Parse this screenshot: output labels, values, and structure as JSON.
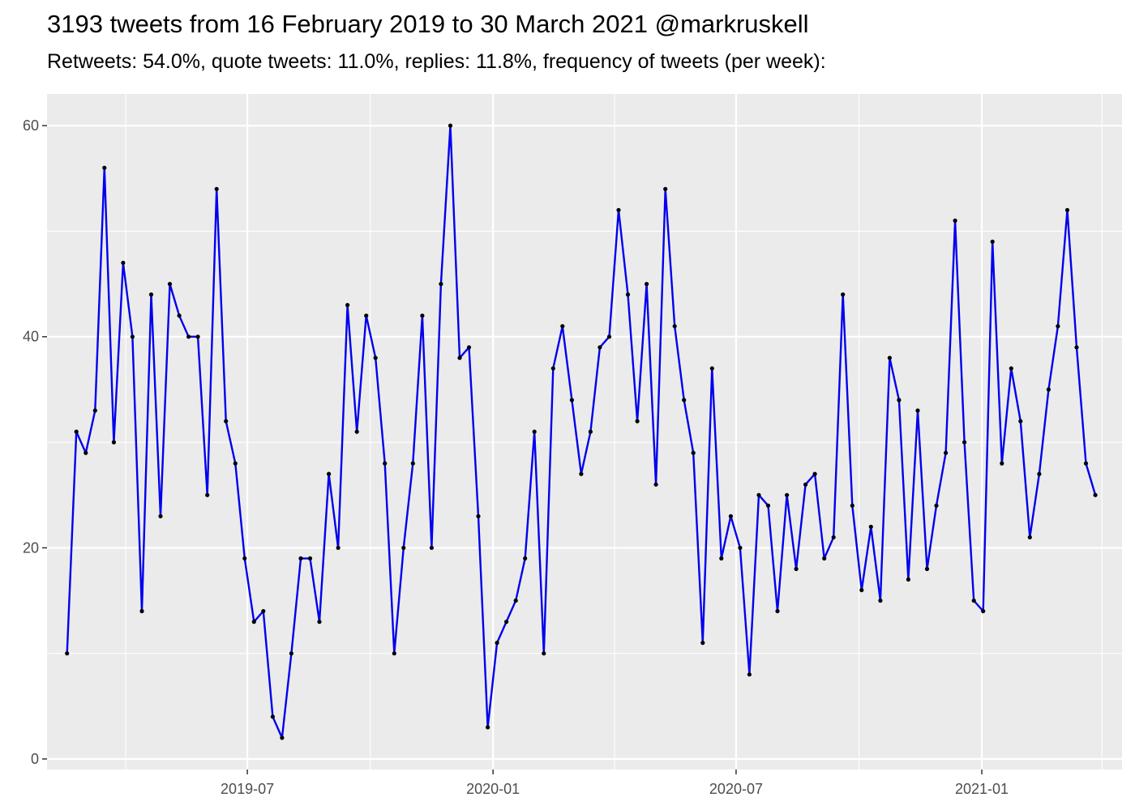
{
  "chart_data": {
    "type": "line",
    "title": "3193 tweets from 16 February 2019 to 30 March 2021 @markruskell",
    "subtitle": "Retweets: 54.0%, quote tweets: 11.0%, replies: 11.8%, frequency of tweets (per week):",
    "xlabel": "",
    "ylabel": "",
    "x_ticks": [
      "2019-07",
      "2020-01",
      "2020-07",
      "2021-01"
    ],
    "y_ticks": [
      0,
      20,
      40,
      60
    ],
    "ylim": [
      -1,
      63
    ],
    "xlim": [
      "2019-02-01",
      "2021-04-16"
    ],
    "grid": true,
    "colors": {
      "panel": "#ebebeb",
      "grid": "#ffffff",
      "line": "#0000ee",
      "point": "#000000"
    },
    "series": [
      {
        "x": [
          "2019-02-16",
          "2019-02-23",
          "2019-03-02",
          "2019-03-09",
          "2019-03-16",
          "2019-03-23",
          "2019-03-30",
          "2019-04-06",
          "2019-04-13",
          "2019-04-20",
          "2019-04-27",
          "2019-05-04",
          "2019-05-11",
          "2019-05-18",
          "2019-05-25",
          "2019-06-01",
          "2019-06-08",
          "2019-06-15",
          "2019-06-22",
          "2019-06-29",
          "2019-07-06",
          "2019-07-13",
          "2019-07-20",
          "2019-07-27",
          "2019-08-03",
          "2019-08-10",
          "2019-08-17",
          "2019-08-24",
          "2019-08-31",
          "2019-09-07",
          "2019-09-14",
          "2019-09-21",
          "2019-09-28",
          "2019-10-05",
          "2019-10-12",
          "2019-10-19",
          "2019-10-26",
          "2019-11-02",
          "2019-11-09",
          "2019-11-16",
          "2019-11-23",
          "2019-11-30",
          "2019-12-07",
          "2019-12-14",
          "2019-12-21",
          "2019-12-28",
          "2020-01-04",
          "2020-01-11",
          "2020-01-18",
          "2020-01-25",
          "2020-02-01",
          "2020-02-08",
          "2020-02-15",
          "2020-02-22",
          "2020-02-29",
          "2020-03-07",
          "2020-03-14",
          "2020-03-21",
          "2020-03-28",
          "2020-04-04",
          "2020-04-11",
          "2020-04-18",
          "2020-04-25",
          "2020-05-02",
          "2020-05-09",
          "2020-05-16",
          "2020-05-23",
          "2020-05-30",
          "2020-06-06",
          "2020-06-13",
          "2020-06-20",
          "2020-06-27",
          "2020-07-04",
          "2020-07-11",
          "2020-07-18",
          "2020-07-25",
          "2020-08-01",
          "2020-08-08",
          "2020-08-15",
          "2020-08-22",
          "2020-08-29",
          "2020-09-05",
          "2020-09-12",
          "2020-09-19",
          "2020-09-26",
          "2020-10-03",
          "2020-10-10",
          "2020-10-17",
          "2020-10-24",
          "2020-10-31",
          "2020-11-07",
          "2020-11-14",
          "2020-11-21",
          "2020-11-28",
          "2020-12-05",
          "2020-12-12",
          "2020-12-19",
          "2020-12-26",
          "2021-01-02",
          "2021-01-09",
          "2021-01-16",
          "2021-01-23",
          "2021-01-30",
          "2021-02-06",
          "2021-02-13",
          "2021-02-20",
          "2021-02-27",
          "2021-03-06",
          "2021-03-13",
          "2021-03-20",
          "2021-03-27"
        ],
        "y": [
          10,
          31,
          29,
          33,
          56,
          30,
          47,
          40,
          14,
          44,
          23,
          45,
          42,
          40,
          40,
          25,
          54,
          32,
          28,
          19,
          13,
          14,
          4,
          2,
          10,
          19,
          19,
          13,
          27,
          20,
          43,
          31,
          42,
          38,
          28,
          10,
          20,
          28,
          42,
          20,
          45,
          60,
          38,
          39,
          23,
          3,
          11,
          13,
          15,
          19,
          31,
          10,
          37,
          41,
          34,
          27,
          31,
          39,
          40,
          52,
          44,
          32,
          45,
          26,
          54,
          41,
          34,
          29,
          11,
          37,
          19,
          23,
          20,
          8,
          25,
          24,
          14,
          25,
          18,
          26,
          27,
          19,
          21,
          44,
          24,
          16,
          22,
          15,
          38,
          34,
          17,
          33,
          18,
          24,
          29,
          51,
          30,
          15,
          14,
          49,
          28,
          37,
          32,
          21,
          27,
          35,
          41,
          52,
          39,
          28,
          25
        ]
      }
    ]
  }
}
